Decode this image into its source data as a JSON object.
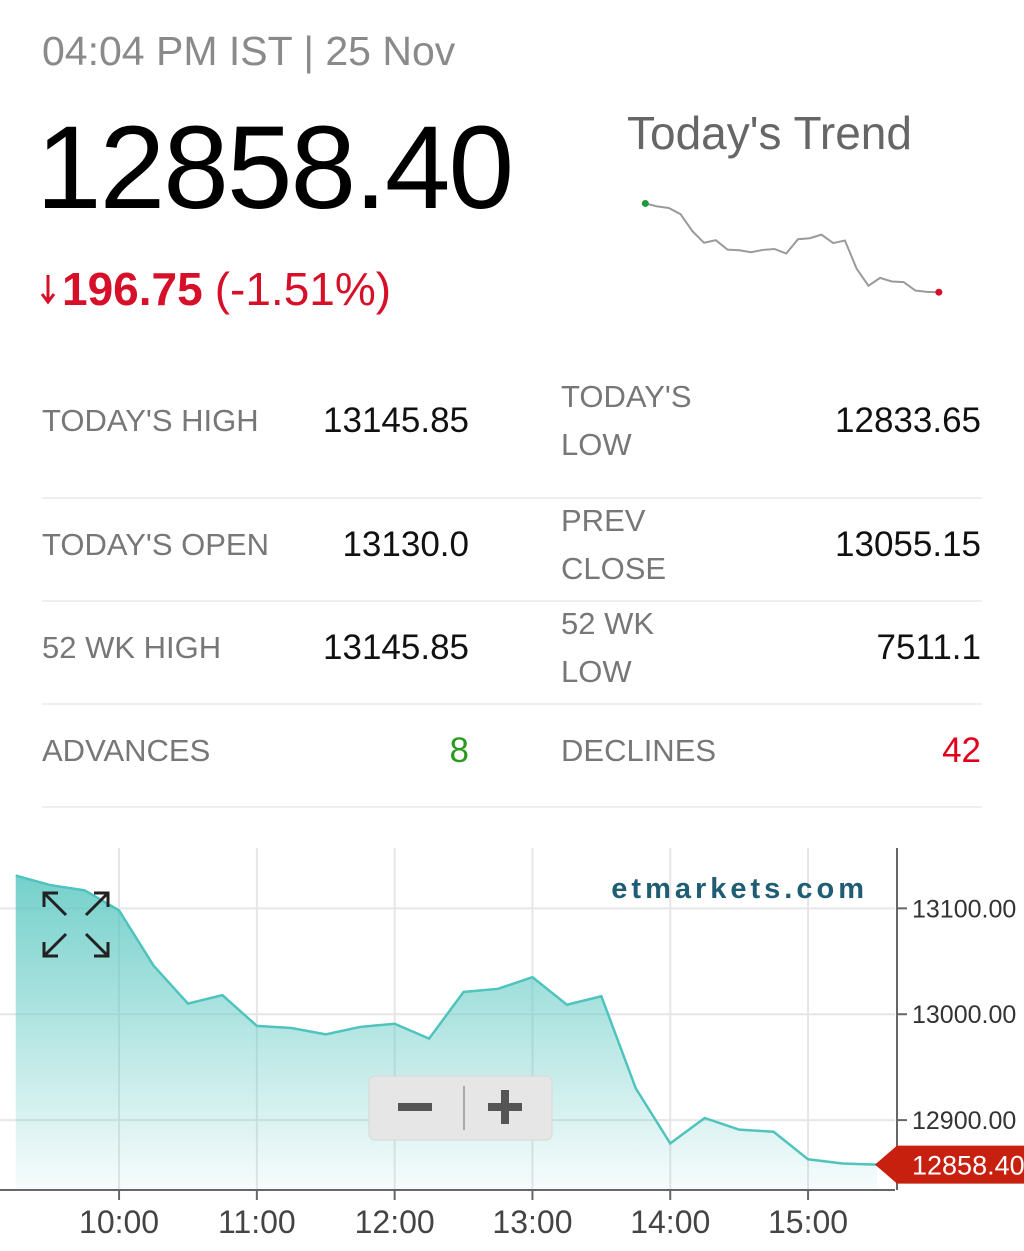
{
  "header": {
    "timestamp": "04:04 PM IST | 25 Nov",
    "price": "12858.40",
    "change": "196.75",
    "change_percent": "(-1.51%)",
    "trend_title": "Today's Trend"
  },
  "stats": [
    {
      "label": "TODAY'S HIGH",
      "value": "13145.85"
    },
    {
      "label": "TODAY'S LOW",
      "value": "12833.65"
    },
    {
      "label": "TODAY'S OPEN",
      "value": "13130.0"
    },
    {
      "label": "PREV CLOSE",
      "value": "13055.15"
    },
    {
      "label": "52 WK HIGH",
      "value": "13145.85"
    },
    {
      "label": "52 WK LOW",
      "value": "7511.1"
    },
    {
      "label": "ADVANCES",
      "value": "8",
      "color": "#2a9a1e"
    },
    {
      "label": "DECLINES",
      "value": "42",
      "color": "#e0001b"
    }
  ],
  "chart_data": {
    "type": "area",
    "watermark": "etmarkets.com",
    "color": "#4fc3bd",
    "x": [
      9.25,
      9.5,
      9.75,
      10,
      10.25,
      10.5,
      10.75,
      11,
      11.25,
      11.5,
      11.75,
      12,
      12.25,
      12.5,
      12.75,
      13,
      13.25,
      13.5,
      13.75,
      14,
      14.25,
      14.5,
      14.75,
      15,
      15.25,
      15.5
    ],
    "values": [
      13131,
      13122,
      13117,
      13098,
      13046,
      13010,
      13018,
      12989,
      12987,
      12981,
      12988,
      12991,
      12977,
      13021,
      13024,
      13035,
      13009,
      13017,
      12930,
      12878,
      12902,
      12891,
      12889,
      12863,
      12859,
      12858
    ],
    "xlim": [
      9.136,
      15.631
    ],
    "ylim": [
      12834,
      13157
    ],
    "xticks": [
      {
        "value": 10,
        "label": "10:00"
      },
      {
        "value": 11,
        "label": "11:00"
      },
      {
        "value": 12,
        "label": "12:00"
      },
      {
        "value": 13,
        "label": "13:00"
      },
      {
        "value": 14,
        "label": "14:00"
      },
      {
        "value": 15,
        "label": "15:00"
      }
    ],
    "yticks": [
      {
        "value": 12900,
        "label": "12900.00"
      },
      {
        "value": 13000,
        "label": "13000.00"
      },
      {
        "value": 13100,
        "label": "13100.00"
      }
    ],
    "last_label": "12858.40",
    "grid": true
  }
}
